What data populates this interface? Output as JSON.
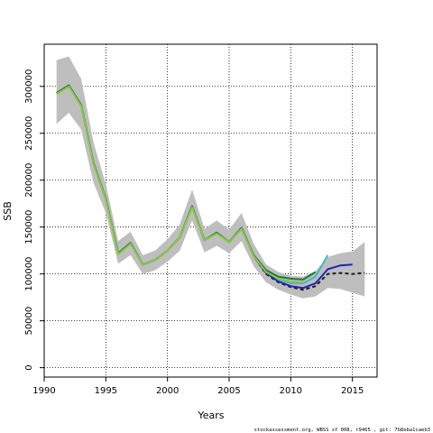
{
  "chart_data": {
    "type": "line",
    "xlabel": "Years",
    "ylabel": "SSB",
    "xlim": [
      1990,
      2017
    ],
    "ylim": [
      -10000,
      345000
    ],
    "xticks": [
      1990,
      1995,
      2000,
      2005,
      2010,
      2015
    ],
    "yticks": [
      0,
      50000,
      100000,
      150000,
      200000,
      250000,
      300000
    ],
    "grid": "dotted",
    "band": {
      "x": [
        1991,
        1992,
        1993,
        1994,
        1995,
        1996,
        1997,
        1998,
        1999,
        2000,
        2001,
        2002,
        2003,
        2004,
        2005,
        2006,
        2007,
        2008,
        2009,
        2010,
        2011,
        2012,
        2013,
        2014,
        2015,
        2016
      ],
      "upper": [
        328000,
        332000,
        308000,
        240000,
        196000,
        135000,
        145000,
        120000,
        125000,
        137000,
        153000,
        190000,
        148000,
        157000,
        147000,
        165000,
        132000,
        110000,
        102000,
        98000,
        97000,
        103000,
        118000,
        122000,
        124000,
        134000
      ],
      "lower": [
        260000,
        272000,
        254000,
        197000,
        165000,
        111000,
        120000,
        100000,
        104000,
        113000,
        125000,
        157000,
        123000,
        130000,
        122000,
        135000,
        108000,
        91000,
        83000,
        78000,
        74000,
        76000,
        85000,
        84000,
        80000,
        76000
      ]
    },
    "series": [
      {
        "color": "#1e1e1e",
        "dash": "4,3",
        "x": [
          1991,
          1992,
          1993,
          1994,
          1995,
          1996,
          1997,
          1998,
          1999,
          2000,
          2001,
          2002,
          2003,
          2004,
          2005,
          2006,
          2007,
          2008,
          2009,
          2010,
          2011,
          2012,
          2013,
          2014,
          2015,
          2016
        ],
        "y": [
          293000,
          301000,
          280000,
          218000,
          180000,
          122000,
          133000,
          110000,
          115000,
          125000,
          139000,
          172000,
          136000,
          144000,
          134000,
          149000,
          119000,
          100000,
          91000,
          86000,
          83000,
          87000,
          100000,
          101000,
          100000,
          101000
        ]
      },
      {
        "color": "#2222bb",
        "dash": "",
        "x": [
          1991,
          1992,
          1993,
          1994,
          1995,
          1996,
          1997,
          1998,
          1999,
          2000,
          2001,
          2002,
          2003,
          2004,
          2005,
          2006,
          2007,
          2008,
          2009,
          2010,
          2011,
          2012,
          2013,
          2014,
          2015
        ],
        "y": [
          293000,
          301000,
          280000,
          218000,
          180000,
          122000,
          133000,
          110000,
          115000,
          125000,
          139000,
          172000,
          136000,
          144000,
          134000,
          149000,
          119000,
          101000,
          92000,
          87000,
          85000,
          90000,
          105000,
          109000,
          110000
        ]
      },
      {
        "color": "#3cbcc4",
        "dash": "",
        "x": [
          1991,
          1992,
          1993,
          1994,
          1995,
          1996,
          1997,
          1998,
          1999,
          2000,
          2001,
          2002,
          2003,
          2004,
          2005,
          2006,
          2007,
          2008,
          2009,
          2010,
          2011,
          2012,
          2013
        ],
        "y": [
          293000,
          301000,
          280000,
          218000,
          180000,
          122000,
          133000,
          110000,
          115000,
          125000,
          139000,
          172000,
          136000,
          144000,
          134000,
          149000,
          120000,
          103000,
          94000,
          90000,
          90000,
          97000,
          120000
        ]
      },
      {
        "color": "#1f7a3a",
        "dash": "",
        "x": [
          1991,
          1992,
          1993,
          1994,
          1995,
          1996,
          1997,
          1998,
          1999,
          2000,
          2001,
          2002,
          2003,
          2004,
          2005,
          2006,
          2007,
          2008,
          2009,
          2010,
          2011,
          2012
        ],
        "y": [
          293000,
          301000,
          280000,
          218000,
          180000,
          122000,
          133000,
          110000,
          115000,
          125000,
          139000,
          172000,
          136000,
          144000,
          134000,
          149000,
          120000,
          104000,
          97000,
          95000,
          94000,
          102000
        ]
      },
      {
        "color": "#8cc63f",
        "dash": "",
        "x": [
          1991,
          1992,
          1993,
          1994,
          1995,
          1996,
          1997,
          1998,
          1999,
          2000,
          2001,
          2002,
          2003,
          2004,
          2005,
          2006,
          2007,
          2008,
          2009,
          2010,
          2011
        ],
        "y": [
          292000,
          300000,
          279000,
          217000,
          179000,
          121000,
          132000,
          110000,
          115000,
          125000,
          139000,
          171000,
          136000,
          143000,
          134000,
          148000,
          119000,
          102000,
          95000,
          92000,
          91000
        ]
      }
    ]
  },
  "footnote": "stockassessment.org, WBSS sf 008, r9465 , git: 7b8eba1caeb3"
}
